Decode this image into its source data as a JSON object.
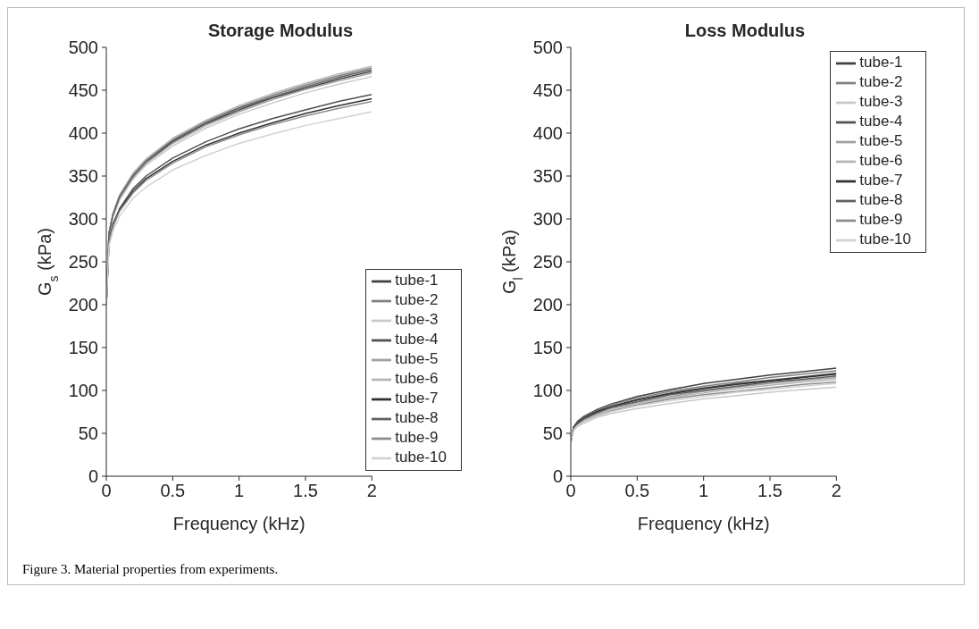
{
  "chart_data": [
    {
      "type": "line",
      "title": "Storage Modulus",
      "xlabel": "Frequency (kHz)",
      "ylabel": "G$_{s}$ (kPa)",
      "x": [
        0,
        0.02,
        0.05,
        0.1,
        0.2,
        0.3,
        0.5,
        0.75,
        1,
        1.25,
        1.5,
        1.75,
        2
      ],
      "xlim": [
        0,
        2
      ],
      "xticks": [
        0,
        0.5,
        1,
        1.5,
        2
      ],
      "ylim": [
        0,
        500
      ],
      "yticks": [
        0,
        50,
        100,
        150,
        200,
        250,
        300,
        350,
        400,
        450,
        500
      ],
      "grid": false,
      "legend": "bottom right",
      "marker": "none",
      "line_style": "solid",
      "annotations": [
        "Figure 3. Material properties from experiments."
      ],
      "series": [
        {
          "name": "tube-1",
          "color": "#404040",
          "values": [
            200,
            282,
            304,
            325,
            349,
            366,
            390,
            411,
            427,
            441,
            452,
            463,
            472
          ]
        },
        {
          "name": "tube-2",
          "color": "#808080",
          "values": [
            200,
            283,
            306,
            327,
            352,
            369,
            392,
            414,
            430,
            444,
            456,
            467,
            476
          ]
        },
        {
          "name": "tube-3",
          "color": "#c8c8c8",
          "values": [
            200,
            280,
            302,
            322,
            346,
            363,
            385,
            406,
            422,
            435,
            447,
            457,
            466
          ]
        },
        {
          "name": "tube-4",
          "color": "#505050",
          "values": [
            200,
            274,
            294,
            312,
            335,
            350,
            371,
            390,
            405,
            417,
            427,
            437,
            445
          ]
        },
        {
          "name": "tube-5",
          "color": "#a0a0a0",
          "values": [
            200,
            282,
            303,
            324,
            348,
            365,
            388,
            409,
            425,
            439,
            451,
            461,
            470
          ]
        },
        {
          "name": "tube-6",
          "color": "#b4b4b4",
          "values": [
            200,
            284,
            306,
            328,
            353,
            370,
            394,
            415,
            432,
            446,
            458,
            469,
            478
          ]
        },
        {
          "name": "tube-7",
          "color": "#303030",
          "values": [
            200,
            272,
            292,
            310,
            332,
            347,
            367,
            386,
            400,
            412,
            423,
            432,
            440
          ]
        },
        {
          "name": "tube-8",
          "color": "#606060",
          "values": [
            200,
            283,
            305,
            326,
            350,
            367,
            391,
            412,
            429,
            442,
            454,
            465,
            474
          ]
        },
        {
          "name": "tube-9",
          "color": "#8c8c8c",
          "values": [
            200,
            272,
            291,
            309,
            330,
            345,
            365,
            384,
            398,
            410,
            420,
            429,
            437
          ]
        },
        {
          "name": "tube-10",
          "color": "#d2d2d2",
          "values": [
            200,
            268,
            286,
            303,
            324,
            337,
            357,
            374,
            388,
            399,
            409,
            417,
            425
          ]
        }
      ]
    },
    {
      "type": "line",
      "title": "Loss Modulus",
      "xlabel": "Frequency (kHz)",
      "ylabel": "G$_{l}$ (kPa)",
      "x": [
        0,
        0.02,
        0.05,
        0.1,
        0.2,
        0.3,
        0.5,
        0.75,
        1,
        1.25,
        1.5,
        1.75,
        2
      ],
      "xlim": [
        0,
        2
      ],
      "xticks": [
        0,
        0.5,
        1,
        1.5,
        2
      ],
      "ylim": [
        0,
        500
      ],
      "yticks": [
        0,
        50,
        100,
        150,
        200,
        250,
        300,
        350,
        400,
        450,
        500
      ],
      "grid": false,
      "legend": "top right",
      "marker": "none",
      "line_style": "solid",
      "series": [
        {
          "name": "tube-1",
          "color": "#404040",
          "values": [
            40,
            57,
            64,
            70,
            78,
            84,
            93,
            101,
            108,
            113,
            118,
            122,
            126
          ]
        },
        {
          "name": "tube-2",
          "color": "#808080",
          "values": [
            40,
            57,
            63,
            69,
            77,
            83,
            91,
            99,
            105,
            110,
            115,
            119,
            123
          ]
        },
        {
          "name": "tube-3",
          "color": "#c8c8c8",
          "values": [
            40,
            53,
            58,
            62,
            69,
            73,
            79,
            85,
            90,
            94,
            98,
            101,
            104
          ]
        },
        {
          "name": "tube-4",
          "color": "#505050",
          "values": [
            40,
            56,
            62,
            68,
            76,
            81,
            89,
            97,
            103,
            108,
            112,
            116,
            120
          ]
        },
        {
          "name": "tube-5",
          "color": "#a0a0a0",
          "values": [
            40,
            55,
            61,
            66,
            74,
            79,
            86,
            93,
            99,
            104,
            108,
            112,
            115
          ]
        },
        {
          "name": "tube-6",
          "color": "#b4b4b4",
          "values": [
            40,
            55,
            60,
            66,
            73,
            78,
            85,
            92,
            97,
            102,
            106,
            110,
            113
          ]
        },
        {
          "name": "tube-7",
          "color": "#303030",
          "values": [
            40,
            56,
            62,
            68,
            75,
            81,
            89,
            96,
            102,
            107,
            111,
            115,
            119
          ]
        },
        {
          "name": "tube-8",
          "color": "#606060",
          "values": [
            40,
            55,
            61,
            67,
            74,
            80,
            87,
            95,
            100,
            105,
            110,
            113,
            117
          ]
        },
        {
          "name": "tube-9",
          "color": "#8c8c8c",
          "values": [
            40,
            54,
            59,
            65,
            71,
            76,
            83,
            90,
            95,
            99,
            103,
            107,
            110
          ]
        },
        {
          "name": "tube-10",
          "color": "#d2d2d2",
          "values": [
            40,
            54,
            59,
            64,
            70,
            75,
            82,
            88,
            93,
            98,
            101,
            105,
            108
          ]
        }
      ]
    }
  ]
}
